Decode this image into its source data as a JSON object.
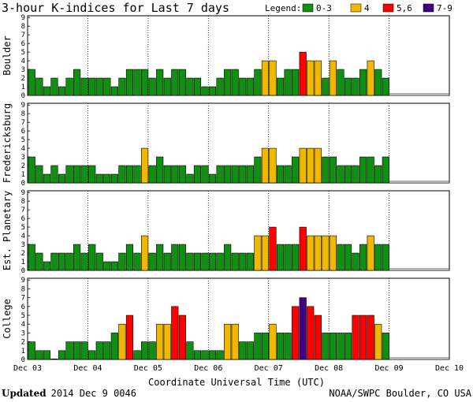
{
  "chart_data": {
    "type": "bar",
    "title": "3-hour K-indices for Last 7 days",
    "legend": {
      "label": "Legend:",
      "entries": [
        {
          "label": "0-3",
          "color": "#109010"
        },
        {
          "label": "4",
          "color": "#f0b800"
        },
        {
          "label": "5,6",
          "color": "#ff0000"
        },
        {
          "label": "7-9",
          "color": "#400080"
        }
      ]
    },
    "xlabel": "Coordinate Universal Time (UTC)",
    "x_ticks": [
      "Dec 03",
      "Dec 04",
      "Dec 05",
      "Dec 06",
      "Dec 07",
      "Dec 08",
      "Dec 09",
      "Dec 10"
    ],
    "ylim": [
      0,
      9
    ],
    "y_ticks": [
      "0",
      "1",
      "2",
      "3",
      "4",
      "5",
      "6",
      "7",
      "8",
      "9"
    ],
    "slots_total": 56,
    "series": [
      {
        "name": "Boulder",
        "values": [
          3,
          2,
          1,
          2,
          1,
          2,
          3,
          2,
          2,
          2,
          2,
          1,
          2,
          3,
          3,
          3,
          2,
          3,
          2,
          3,
          3,
          2,
          2,
          1,
          1,
          2,
          3,
          3,
          2,
          2,
          3,
          4,
          4,
          2,
          3,
          3,
          5,
          4,
          4,
          2,
          4,
          3,
          2,
          2,
          3,
          4,
          3,
          2
        ]
      },
      {
        "name": "Fredericksburg",
        "values": [
          3,
          2,
          1,
          2,
          1,
          2,
          2,
          2,
          2,
          1,
          1,
          1,
          2,
          2,
          2,
          4,
          2,
          3,
          2,
          2,
          2,
          1,
          2,
          2,
          1,
          2,
          2,
          2,
          2,
          2,
          3,
          4,
          4,
          2,
          2,
          3,
          4,
          4,
          4,
          3,
          3,
          2,
          2,
          2,
          3,
          3,
          2,
          3
        ]
      },
      {
        "name": "Est. Planetary",
        "values": [
          3,
          2,
          1,
          2,
          2,
          2,
          3,
          2,
          3,
          2,
          1,
          1,
          2,
          3,
          2,
          4,
          2,
          3,
          2,
          3,
          3,
          2,
          2,
          2,
          2,
          2,
          3,
          2,
          2,
          2,
          4,
          4,
          5,
          3,
          3,
          3,
          5,
          4,
          4,
          4,
          4,
          3,
          3,
          2,
          3,
          4,
          3,
          3
        ]
      },
      {
        "name": "College",
        "values": [
          2,
          1,
          1,
          0,
          1,
          2,
          2,
          2,
          1,
          2,
          2,
          3,
          4,
          5,
          1,
          2,
          2,
          4,
          4,
          6,
          5,
          2,
          1,
          1,
          1,
          1,
          4,
          4,
          2,
          2,
          3,
          3,
          4,
          3,
          3,
          6,
          7,
          6,
          5,
          3,
          3,
          3,
          3,
          5,
          5,
          5,
          4,
          3
        ]
      }
    ]
  },
  "footer": {
    "updated_label": "Updated",
    "updated_value": "2014 Dec  9 0046",
    "source": "NOAA/SWPC Boulder, CO USA"
  }
}
